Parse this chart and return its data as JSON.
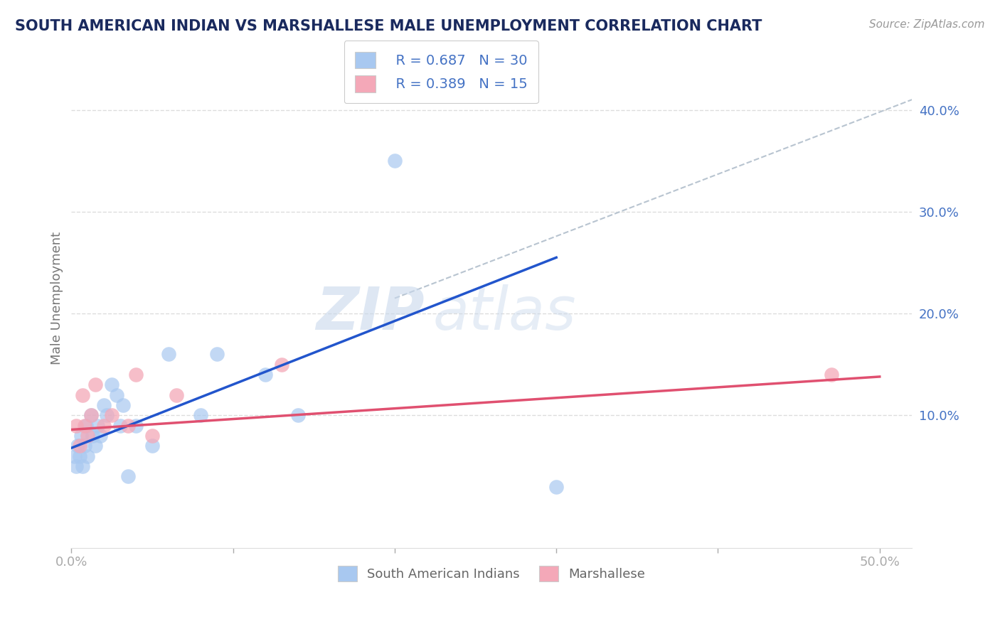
{
  "title": "SOUTH AMERICAN INDIAN VS MARSHALLESE MALE UNEMPLOYMENT CORRELATION CHART",
  "source": "Source: ZipAtlas.com",
  "ylabel": "Male Unemployment",
  "xlim": [
    0.0,
    0.52
  ],
  "ylim": [
    -0.03,
    0.46
  ],
  "yticks_right": [
    0.1,
    0.2,
    0.3,
    0.4
  ],
  "ytick_labels_right": [
    "10.0%",
    "20.0%",
    "30.0%",
    "40.0%"
  ],
  "legend_r1": "R = 0.687",
  "legend_n1": "N = 30",
  "legend_r2": "R = 0.389",
  "legend_n2": "N = 15",
  "color_blue": "#a8c8f0",
  "color_pink": "#f4a8b8",
  "color_blue_text": "#4472c4",
  "color_title": "#1a2a5e",
  "blue_scatter_x": [
    0.002,
    0.003,
    0.004,
    0.005,
    0.006,
    0.007,
    0.008,
    0.009,
    0.01,
    0.012,
    0.013,
    0.015,
    0.016,
    0.018,
    0.02,
    0.022,
    0.025,
    0.028,
    0.03,
    0.032,
    0.035,
    0.04,
    0.05,
    0.06,
    0.08,
    0.09,
    0.12,
    0.14,
    0.2,
    0.3
  ],
  "blue_scatter_y": [
    0.06,
    0.05,
    0.07,
    0.06,
    0.08,
    0.05,
    0.07,
    0.09,
    0.06,
    0.1,
    0.08,
    0.07,
    0.09,
    0.08,
    0.11,
    0.1,
    0.13,
    0.12,
    0.09,
    0.11,
    0.04,
    0.09,
    0.07,
    0.16,
    0.1,
    0.16,
    0.14,
    0.1,
    0.35,
    0.03
  ],
  "pink_scatter_x": [
    0.003,
    0.005,
    0.007,
    0.008,
    0.01,
    0.012,
    0.015,
    0.02,
    0.025,
    0.035,
    0.04,
    0.05,
    0.065,
    0.13,
    0.47
  ],
  "pink_scatter_y": [
    0.09,
    0.07,
    0.12,
    0.09,
    0.08,
    0.1,
    0.13,
    0.09,
    0.1,
    0.09,
    0.14,
    0.08,
    0.12,
    0.15,
    0.14
  ],
  "blue_line_x": [
    0.0,
    0.3
  ],
  "blue_line_y": [
    0.068,
    0.255
  ],
  "pink_line_x": [
    0.0,
    0.5
  ],
  "pink_line_y": [
    0.086,
    0.138
  ],
  "dash_line_x": [
    0.2,
    0.52
  ],
  "dash_line_y": [
    0.215,
    0.41
  ],
  "bottom_legend_labels": [
    "South American Indians",
    "Marshallese"
  ]
}
